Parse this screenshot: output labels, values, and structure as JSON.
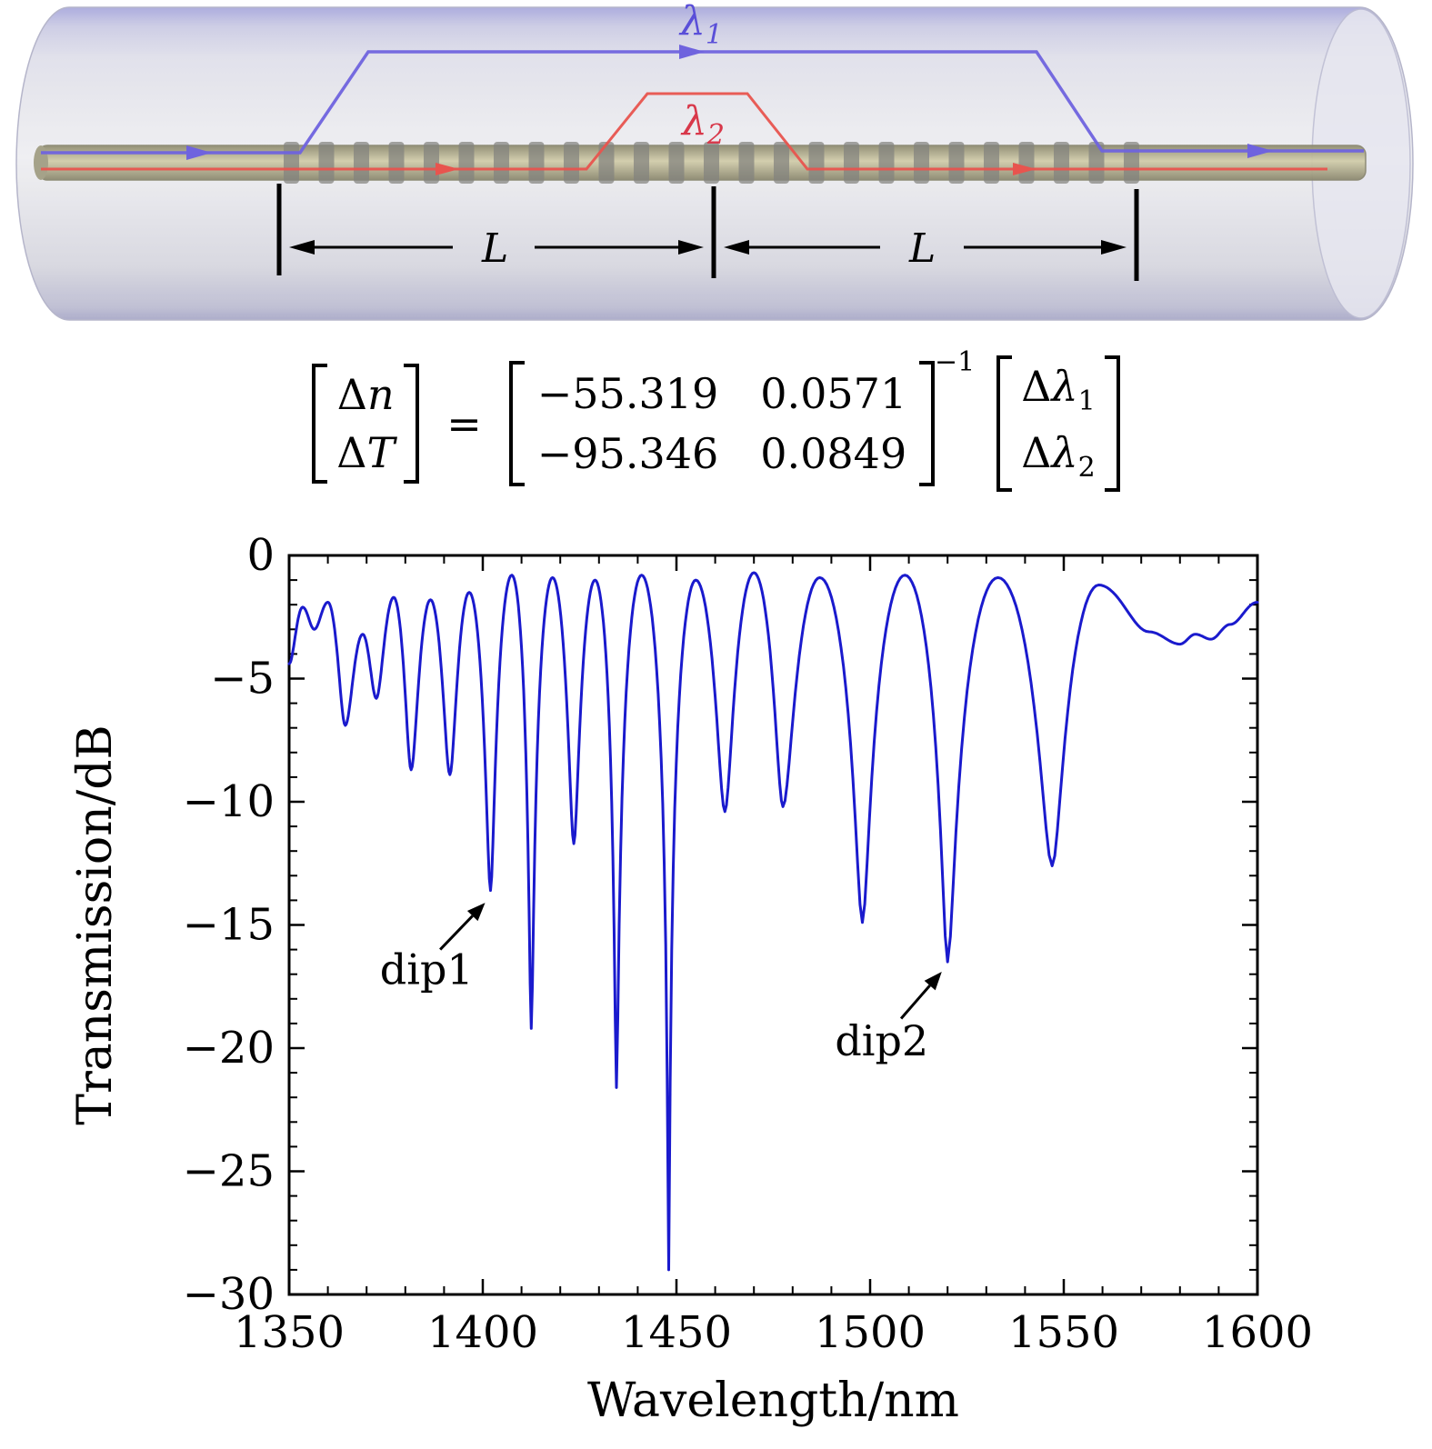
{
  "diagram": {
    "lambda1_base": "λ",
    "lambda1_sub": "1",
    "lambda2_base": "λ",
    "lambda2_sub": "2",
    "length_label": "L",
    "colors": {
      "lambda1_line": "#6f63de",
      "lambda2_line": "#e8544e",
      "cladding": "#e6e6ee",
      "core": "#c2bd9d",
      "grating_band": "#82827e"
    }
  },
  "equation": {
    "equals": "=",
    "exponent": "−1",
    "lhs_rows": [
      {
        "delta": "Δ",
        "var": "n"
      },
      {
        "delta": "Δ",
        "var": "T"
      }
    ],
    "matrix": {
      "r1c1": "−55.319",
      "r1c2": "0.0571",
      "r2c1": "−95.346",
      "r2c2": "0.0849"
    },
    "rhs_rows": [
      {
        "delta": "Δ",
        "var": "λ",
        "sub": "1"
      },
      {
        "delta": "Δ",
        "var": "λ",
        "sub": "2"
      }
    ]
  },
  "chart_data": {
    "type": "line",
    "title": "",
    "xlabel": "Wavelength/nm",
    "ylabel": "Transmission/dB",
    "xlim": [
      1350,
      1600
    ],
    "ylim": [
      -30,
      0
    ],
    "xticks": [
      1350,
      1400,
      1450,
      1500,
      1550,
      1600
    ],
    "yticks": [
      0,
      -5,
      -10,
      -15,
      -20,
      -25,
      -30
    ],
    "grid": false,
    "legend": "none",
    "line_color": "#1a1acd",
    "control_points": [
      [
        1350,
        -4.4
      ],
      [
        1353.5,
        -2.1
      ],
      [
        1356.5,
        -3.0
      ],
      [
        1360,
        -1.9
      ],
      [
        1364.5,
        -6.9
      ],
      [
        1369,
        -3.2
      ],
      [
        1372.5,
        -5.8
      ],
      [
        1377,
        -1.7
      ],
      [
        1381.5,
        -8.7
      ],
      [
        1386.5,
        -1.8
      ],
      [
        1391.5,
        -8.9
      ],
      [
        1396.5,
        -1.5
      ],
      [
        1402,
        -13.6
      ],
      [
        1407.5,
        -0.8
      ],
      [
        1412.5,
        -19.2
      ],
      [
        1418,
        -0.9
      ],
      [
        1423.5,
        -11.7
      ],
      [
        1429,
        -1.0
      ],
      [
        1434.5,
        -21.6
      ],
      [
        1441,
        -0.8
      ],
      [
        1448,
        -29.0
      ],
      [
        1455,
        -1.0
      ],
      [
        1462.5,
        -10.4
      ],
      [
        1470,
        -0.7
      ],
      [
        1477.5,
        -10.2
      ],
      [
        1487,
        -0.9
      ],
      [
        1498,
        -14.9
      ],
      [
        1509,
        -0.8
      ],
      [
        1520,
        -16.5
      ],
      [
        1533,
        -0.9
      ],
      [
        1547,
        -12.6
      ],
      [
        1559,
        -1.2
      ],
      [
        1572,
        -3.1
      ],
      [
        1580,
        -3.6
      ],
      [
        1584,
        -3.2
      ],
      [
        1588,
        -3.4
      ],
      [
        1593,
        -2.8
      ],
      [
        1600,
        -1.9
      ]
    ],
    "annotations": [
      {
        "label": "dip1",
        "label_x": 1385.5,
        "label_y": -17.4,
        "arrow_from": [
          1389,
          -16.0
        ],
        "arrow_to": [
          1400.6,
          -14.1
        ]
      },
      {
        "label": "dip2",
        "label_x": 1503,
        "label_y": -20.3,
        "arrow_from": [
          1508,
          -18.8
        ],
        "arrow_to": [
          1518.5,
          -16.9
        ]
      }
    ]
  }
}
